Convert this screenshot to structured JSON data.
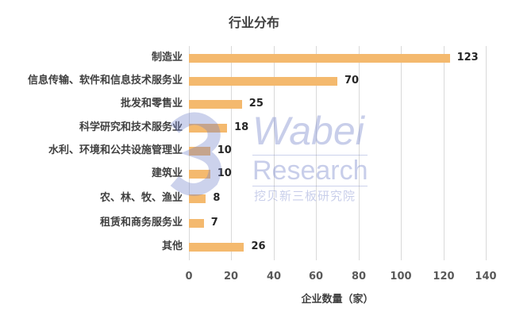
{
  "chart_data": {
    "type": "bar",
    "orientation": "horizontal",
    "title": "行业分布",
    "xlabel": "企业数量（家）",
    "ylabel": "",
    "categories": [
      "制造业",
      "信息传输、软件和信息技术服务业",
      "批发和零售业",
      "科学研究和技术服务业",
      "水利、环境和公共设施管理业",
      "建筑业",
      "农、林、牧、渔业",
      "租赁和商务服务业",
      "其他"
    ],
    "values": [
      123,
      70,
      25,
      18,
      10,
      10,
      8,
      7,
      26
    ],
    "xlim": [
      0,
      140
    ],
    "xticks": [
      "0",
      "20",
      "40",
      "60",
      "80",
      "100",
      "120",
      "140"
    ],
    "grid": true,
    "legend": "none",
    "bar_color": "#f4b96e",
    "data_labels": [
      "123",
      "70",
      "25",
      "18",
      "10",
      "10",
      "8",
      "7",
      "26"
    ]
  },
  "watermark": {
    "brand": "Wabei",
    "subtitle": "Research",
    "chinese": "挖贝新三板研究院"
  }
}
